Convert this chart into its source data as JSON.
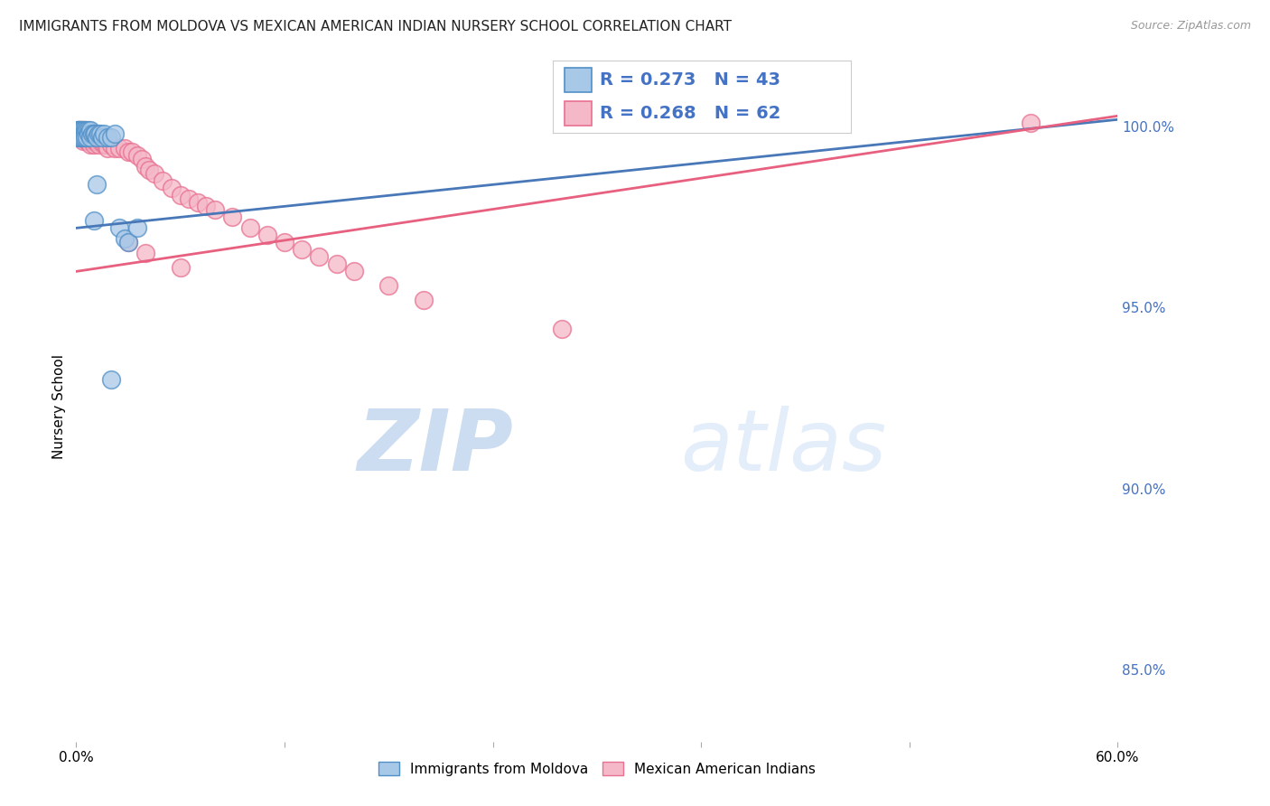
{
  "title": "IMMIGRANTS FROM MOLDOVA VS MEXICAN AMERICAN INDIAN NURSERY SCHOOL CORRELATION CHART",
  "source": "Source: ZipAtlas.com",
  "ylabel": "Nursery School",
  "xlim": [
    0.0,
    0.6
  ],
  "ylim": [
    0.83,
    1.015
  ],
  "xticks": [
    0.0,
    0.12,
    0.24,
    0.36,
    0.48,
    0.6
  ],
  "xticklabels": [
    "0.0%",
    "",
    "",
    "",
    "",
    "60.0%"
  ],
  "yticks": [
    0.85,
    0.9,
    0.95,
    1.0
  ],
  "yticklabels": [
    "85.0%",
    "90.0%",
    "95.0%",
    "100.0%"
  ],
  "legend1_label": "Immigrants from Moldova",
  "legend2_label": "Mexican American Indians",
  "r1": 0.273,
  "n1": 43,
  "r2": 0.268,
  "n2": 62,
  "color_blue": "#a8c8e8",
  "color_pink": "#f4b8c8",
  "color_blue_edge": "#5090c8",
  "color_pink_edge": "#e87090",
  "color_blue_line": "#4878b8",
  "color_pink_line": "#e86080",
  "blue_line_x0": 0.0,
  "blue_line_y0": 0.972,
  "blue_line_x1": 0.6,
  "blue_line_y1": 1.002,
  "pink_line_x0": 0.0,
  "pink_line_y0": 0.96,
  "pink_line_x1": 0.6,
  "pink_line_y1": 1.003,
  "blue_x": [
    0.001,
    0.001,
    0.001,
    0.001,
    0.002,
    0.002,
    0.002,
    0.002,
    0.003,
    0.003,
    0.003,
    0.003,
    0.003,
    0.004,
    0.004,
    0.004,
    0.005,
    0.005,
    0.005,
    0.006,
    0.006,
    0.007,
    0.007,
    0.008,
    0.008,
    0.009,
    0.01,
    0.011,
    0.012,
    0.013,
    0.014,
    0.015,
    0.016,
    0.018,
    0.02,
    0.022,
    0.025,
    0.028,
    0.03,
    0.035,
    0.01,
    0.012,
    0.02
  ],
  "blue_y": [
    0.999,
    0.999,
    0.998,
    0.997,
    0.999,
    0.999,
    0.998,
    0.997,
    0.999,
    0.999,
    0.998,
    0.998,
    0.997,
    0.999,
    0.998,
    0.997,
    0.999,
    0.998,
    0.997,
    0.999,
    0.997,
    0.999,
    0.998,
    0.999,
    0.997,
    0.998,
    0.998,
    0.998,
    0.997,
    0.998,
    0.998,
    0.997,
    0.998,
    0.997,
    0.997,
    0.998,
    0.972,
    0.969,
    0.968,
    0.972,
    0.974,
    0.984,
    0.93
  ],
  "pink_x": [
    0.001,
    0.001,
    0.002,
    0.002,
    0.003,
    0.003,
    0.003,
    0.004,
    0.004,
    0.004,
    0.005,
    0.005,
    0.006,
    0.006,
    0.007,
    0.007,
    0.008,
    0.008,
    0.009,
    0.01,
    0.01,
    0.011,
    0.012,
    0.013,
    0.014,
    0.015,
    0.016,
    0.017,
    0.018,
    0.02,
    0.022,
    0.025,
    0.028,
    0.03,
    0.032,
    0.035,
    0.038,
    0.04,
    0.042,
    0.045,
    0.05,
    0.055,
    0.06,
    0.065,
    0.07,
    0.075,
    0.08,
    0.09,
    0.1,
    0.11,
    0.12,
    0.13,
    0.14,
    0.15,
    0.16,
    0.18,
    0.2,
    0.28,
    0.03,
    0.04,
    0.55,
    0.06
  ],
  "pink_y": [
    0.999,
    0.998,
    0.999,
    0.997,
    0.999,
    0.998,
    0.997,
    0.999,
    0.998,
    0.996,
    0.999,
    0.997,
    0.998,
    0.996,
    0.998,
    0.996,
    0.997,
    0.995,
    0.996,
    0.997,
    0.995,
    0.996,
    0.996,
    0.995,
    0.996,
    0.997,
    0.995,
    0.995,
    0.994,
    0.995,
    0.994,
    0.994,
    0.994,
    0.993,
    0.993,
    0.992,
    0.991,
    0.989,
    0.988,
    0.987,
    0.985,
    0.983,
    0.981,
    0.98,
    0.979,
    0.978,
    0.977,
    0.975,
    0.972,
    0.97,
    0.968,
    0.966,
    0.964,
    0.962,
    0.96,
    0.956,
    0.952,
    0.944,
    0.968,
    0.965,
    1.001,
    0.961
  ],
  "watermark_zip": "ZIP",
  "watermark_atlas": "atlas",
  "grid_color": "#cccccc"
}
